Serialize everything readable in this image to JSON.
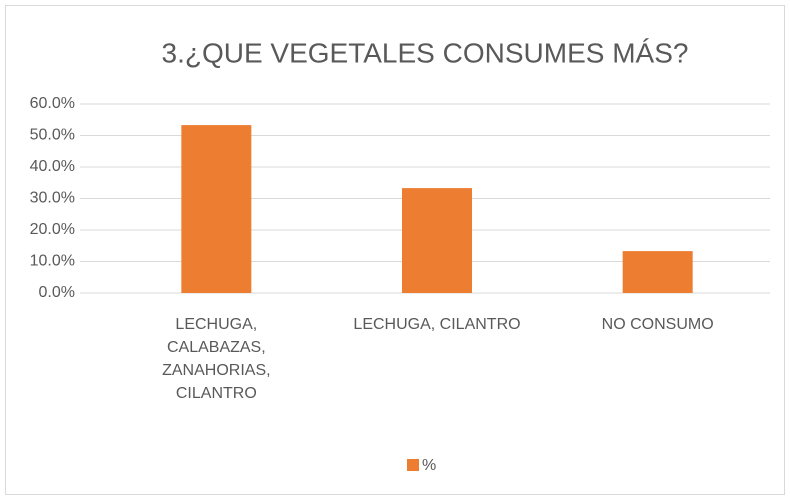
{
  "chart_data": {
    "type": "bar",
    "title": "3.¿QUE VEGETALES CONSUMES MÁS?",
    "categories": [
      "LECHUGA, CALABAZAS, ZANAHORIAS, CILANTRO",
      "LECHUGA, CILANTRO",
      "NO CONSUMO"
    ],
    "series": [
      {
        "name": "%",
        "color": "#ed7d31",
        "values": [
          53.3,
          33.3,
          13.3
        ]
      }
    ],
    "ylim": [
      0,
      60
    ],
    "yticks": [
      {
        "value": 0,
        "label": "0.0%"
      },
      {
        "value": 10,
        "label": "10.0%"
      },
      {
        "value": 20,
        "label": "20.0%"
      },
      {
        "value": 30,
        "label": "30.0%"
      },
      {
        "value": 40,
        "label": "40.0%"
      },
      {
        "value": 50,
        "label": "50.0%"
      },
      {
        "value": 60,
        "label": "60.0%"
      }
    ],
    "grid": true,
    "legend": "bottom"
  }
}
